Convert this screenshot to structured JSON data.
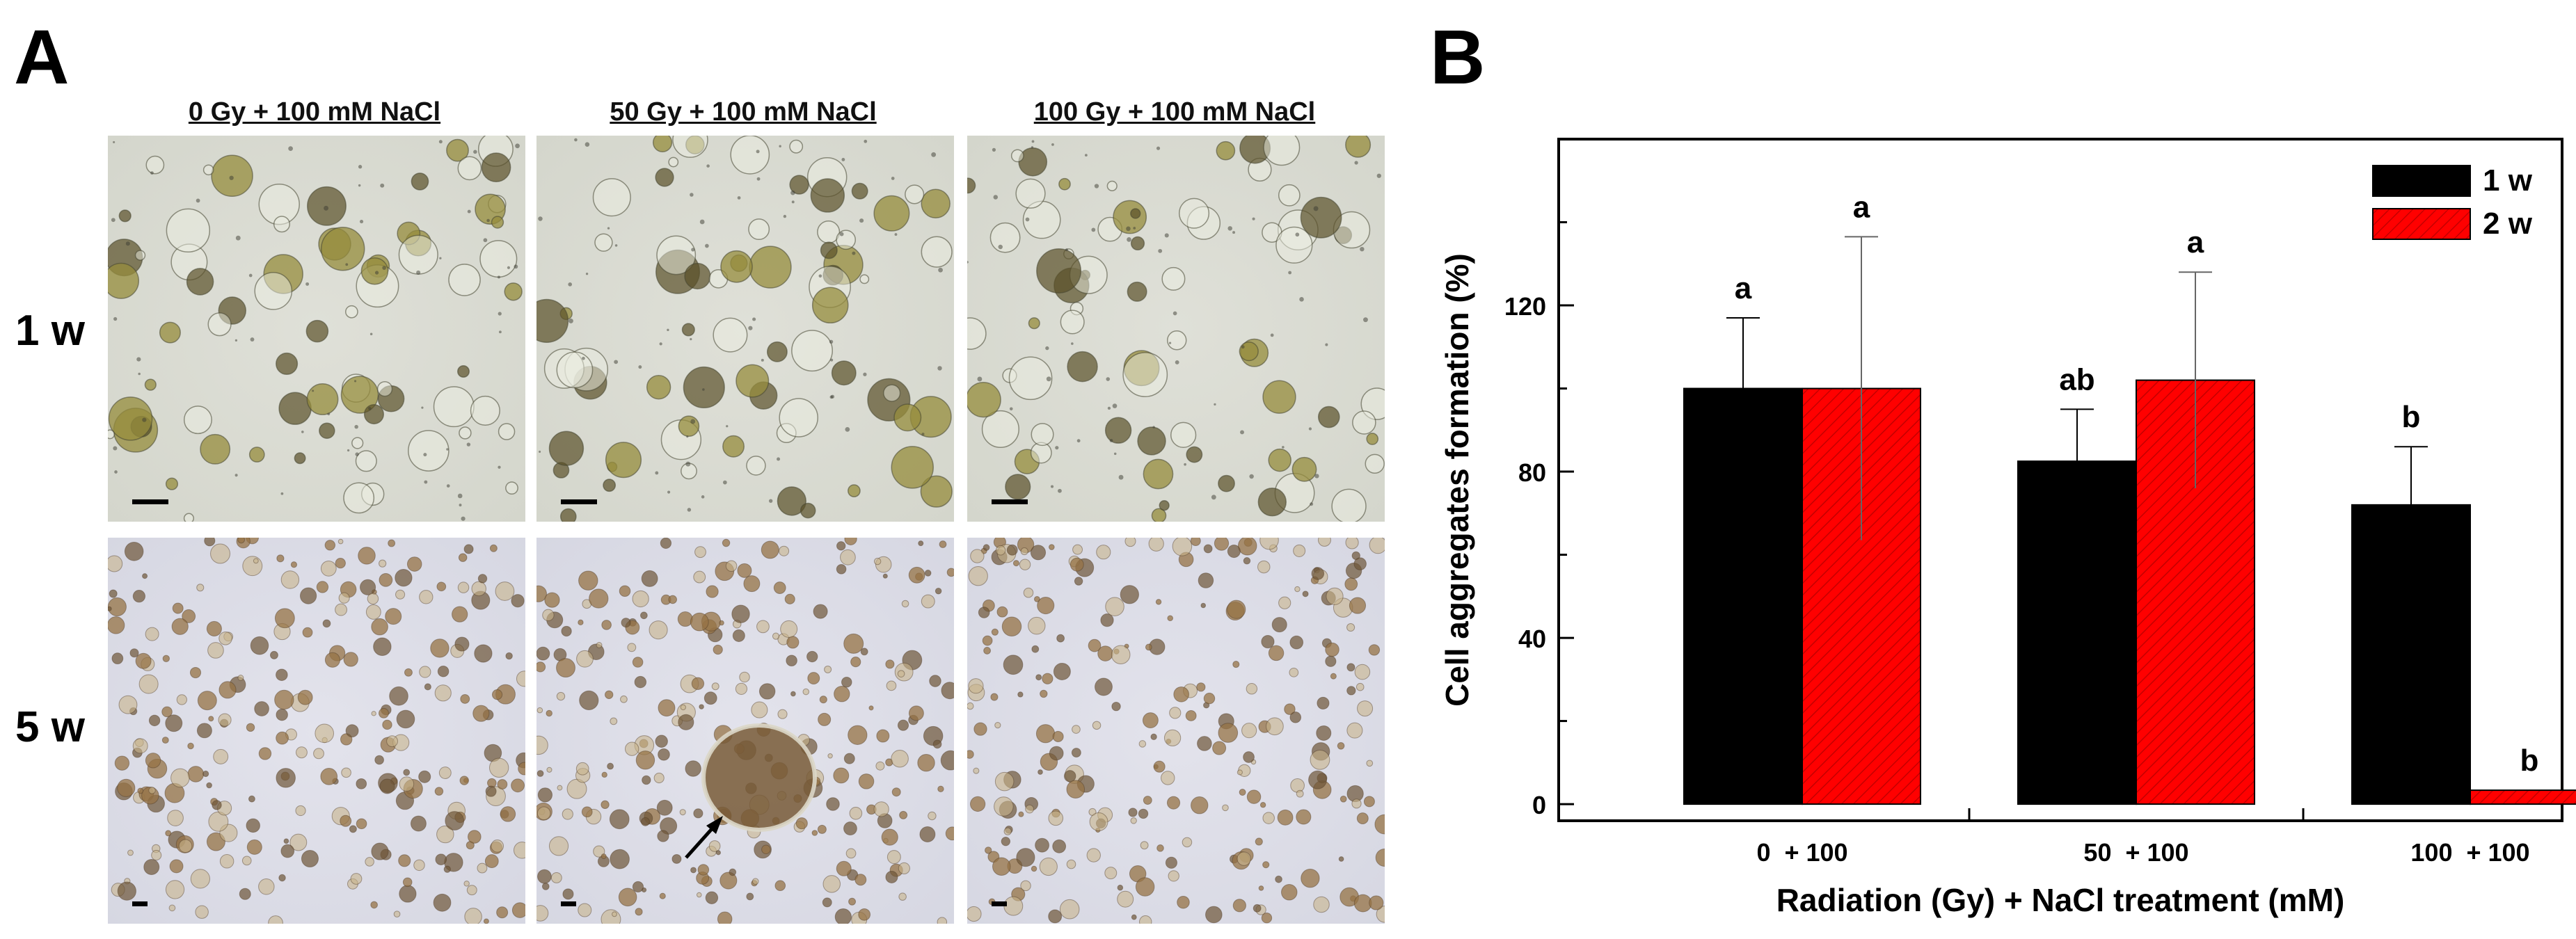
{
  "panel_a": {
    "letter": "A",
    "columns": [
      "0 Gy + 100 mM NaCl",
      "50 Gy + 100 mM NaCl",
      "100 Gy + 100 mM NaCl"
    ],
    "rows": [
      "1 w",
      "5 w"
    ]
  },
  "panel_b": {
    "letter": "B"
  },
  "chart_data": {
    "type": "bar",
    "categories": [
      "0  + 100",
      "50  + 100",
      "100  + 100"
    ],
    "series": [
      {
        "name": "1 w",
        "color": "#000000",
        "values": [
          100,
          82.5,
          72
        ],
        "errors": [
          17,
          12.5,
          14
        ],
        "letters": [
          "a",
          "ab",
          "b"
        ]
      },
      {
        "name": "2 w",
        "color": "#ff0000",
        "values": [
          100,
          102,
          0
        ],
        "errors": [
          36.5,
          26,
          0
        ],
        "letters": [
          "a",
          "a",
          "b"
        ]
      }
    ],
    "xlabel": "Radiation (Gy) + NaCl treatment (mM)",
    "ylabel": "Cell aggregates formation (%)",
    "ylim": [
      -4,
      160
    ],
    "yticks": [
      0,
      40,
      80,
      120
    ],
    "legend": "top-right"
  }
}
